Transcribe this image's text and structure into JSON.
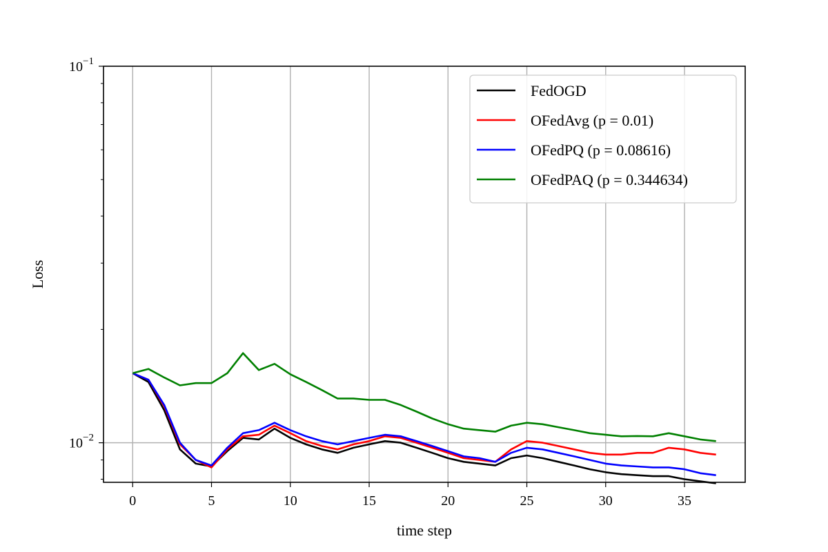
{
  "chart_data": {
    "type": "line",
    "title": "",
    "xlabel": "time step",
    "ylabel": "Loss",
    "y_scale": "log",
    "xlim": [
      -1.85,
      38.85
    ],
    "ylim": [
      0.00785,
      0.1
    ],
    "grid": true,
    "legend_position": "top-right",
    "x_ticks": [
      0,
      5,
      10,
      15,
      20,
      25,
      30,
      35
    ],
    "x_tick_labels": [
      "0",
      "5",
      "10",
      "15",
      "20",
      "25",
      "30",
      "35"
    ],
    "y_major_ticks": [
      {
        "value": 0.01,
        "base": "10",
        "exponent": "−2"
      },
      {
        "value": 0.1,
        "base": "10",
        "exponent": "−1"
      }
    ],
    "y_minor_ticks": [
      0.008,
      0.009,
      0.02,
      0.03,
      0.04,
      0.05,
      0.06,
      0.07,
      0.08,
      0.09
    ],
    "x": [
      0,
      1,
      2,
      3,
      4,
      5,
      6,
      7,
      8,
      9,
      10,
      11,
      12,
      13,
      14,
      15,
      16,
      17,
      18,
      19,
      20,
      21,
      22,
      23,
      24,
      25,
      26,
      27,
      28,
      29,
      30,
      31,
      32,
      33,
      34,
      35,
      36,
      37
    ],
    "series": [
      {
        "name": "FedOGD",
        "color": "#000000",
        "values": [
          0.0153,
          0.0145,
          0.0122,
          0.0096,
          0.0088,
          0.00865,
          0.0095,
          0.0103,
          0.0102,
          0.0109,
          0.0103,
          0.0099,
          0.0096,
          0.0094,
          0.0097,
          0.0099,
          0.0101,
          0.01,
          0.0097,
          0.0094,
          0.0091,
          0.0089,
          0.0088,
          0.0087,
          0.0091,
          0.00925,
          0.0091,
          0.0089,
          0.0087,
          0.0085,
          0.00835,
          0.00825,
          0.0082,
          0.00815,
          0.00815,
          0.008,
          0.0079,
          0.0078
        ]
      },
      {
        "name": "OFedAvg (p = 0.01)",
        "color": "#ff0000",
        "values": [
          0.0153,
          0.0147,
          0.0125,
          0.0099,
          0.009,
          0.0086,
          0.0096,
          0.0104,
          0.0105,
          0.0111,
          0.0106,
          0.0101,
          0.0098,
          0.0096,
          0.0099,
          0.0101,
          0.0104,
          0.0103,
          0.01,
          0.0097,
          0.0094,
          0.0091,
          0.009,
          0.0089,
          0.0096,
          0.0101,
          0.01,
          0.0098,
          0.0096,
          0.0094,
          0.0093,
          0.0093,
          0.0094,
          0.0094,
          0.0097,
          0.0096,
          0.0094,
          0.0093
        ]
      },
      {
        "name": "OFedPQ (p = 0.08616)",
        "color": "#0000ff",
        "values": [
          0.0153,
          0.0147,
          0.0126,
          0.01,
          0.009,
          0.0087,
          0.0097,
          0.0106,
          0.0108,
          0.0113,
          0.0108,
          0.0104,
          0.0101,
          0.0099,
          0.0101,
          0.0103,
          0.0105,
          0.0104,
          0.0101,
          0.0098,
          0.0095,
          0.0092,
          0.0091,
          0.0089,
          0.0094,
          0.0097,
          0.0096,
          0.0094,
          0.0092,
          0.009,
          0.0088,
          0.0087,
          0.00865,
          0.0086,
          0.0086,
          0.0085,
          0.0083,
          0.0082
        ]
      },
      {
        "name": "OFedPAQ (p = 0.344634)",
        "color": "#008000",
        "values": [
          0.0153,
          0.0157,
          0.0149,
          0.0142,
          0.0144,
          0.0144,
          0.0153,
          0.0173,
          0.0156,
          0.0162,
          0.0152,
          0.0145,
          0.0138,
          0.0131,
          0.0131,
          0.013,
          0.013,
          0.0126,
          0.0121,
          0.0116,
          0.0112,
          0.0109,
          0.0108,
          0.0107,
          0.0111,
          0.0113,
          0.0112,
          0.011,
          0.0108,
          0.0106,
          0.0105,
          0.0104,
          0.01042,
          0.0104,
          0.0106,
          0.0104,
          0.0102,
          0.0101
        ]
      }
    ]
  }
}
